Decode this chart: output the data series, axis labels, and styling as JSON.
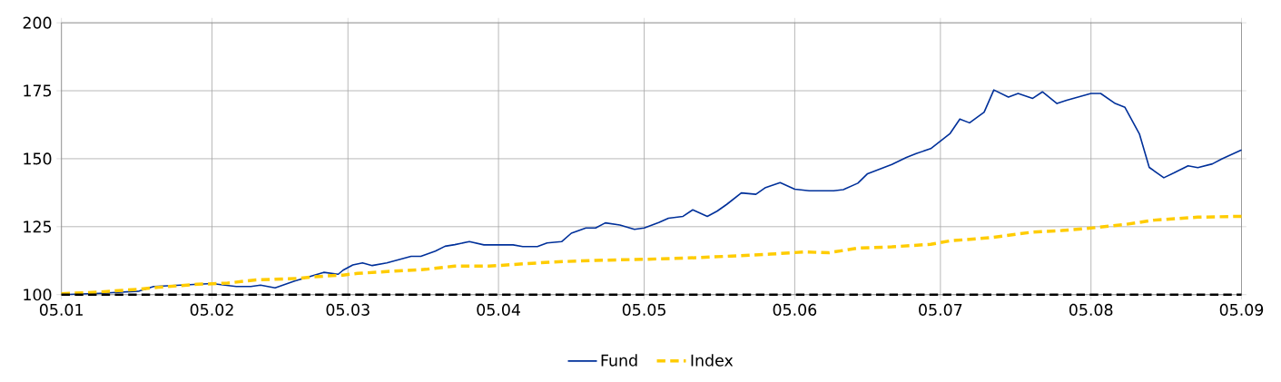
{
  "chart_data": {
    "type": "line",
    "xlim": [
      "2005-01",
      "2005-09"
    ],
    "ylim": [
      100,
      200
    ],
    "xticks": [
      {
        "value": "2005-01",
        "label": "05.01"
      },
      {
        "value": "2005-02",
        "label": "05.02"
      },
      {
        "value": "2005-03",
        "label": "05.03"
      },
      {
        "value": "2005-04",
        "label": "05.04"
      },
      {
        "value": "2005-05",
        "label": "05.05"
      },
      {
        "value": "2005-06",
        "label": "05.06"
      },
      {
        "value": "2005-07",
        "label": "05.07"
      },
      {
        "value": "2005-08",
        "label": "05.08"
      },
      {
        "value": "2005-09",
        "label": "05.09"
      }
    ],
    "yticks": [
      100,
      125,
      150,
      175,
      200
    ],
    "grid": true,
    "legend": "bottom",
    "ref_lines": [
      {
        "axis": "y",
        "value": 100,
        "color": "#000000",
        "line_style": "dashed"
      }
    ],
    "series": [
      {
        "name": "Fund",
        "color": "#00309a",
        "line_style": "solid",
        "x": [
          "2005-01-01",
          "2005-01-09",
          "2005-01-17",
          "2005-01-20",
          "2005-02-01",
          "2005-02-06",
          "2005-02-09",
          "2005-02-11",
          "2005-02-14",
          "2005-02-18",
          "2005-02-24",
          "2005-02-27",
          "2005-02-28",
          "2005-03-02",
          "2005-03-04",
          "2005-03-06",
          "2005-03-09",
          "2005-03-14",
          "2005-03-16",
          "2005-03-19",
          "2005-03-21",
          "2005-03-23",
          "2005-03-26",
          "2005-03-29",
          "2005-04-04",
          "2005-04-06",
          "2005-04-09",
          "2005-04-11",
          "2005-04-14",
          "2005-04-16",
          "2005-04-19",
          "2005-04-21",
          "2005-04-23",
          "2005-04-26",
          "2005-04-29",
          "2005-05-01",
          "2005-05-04",
          "2005-05-06",
          "2005-05-09",
          "2005-05-11",
          "2005-05-14",
          "2005-05-16",
          "2005-05-18",
          "2005-05-21",
          "2005-05-24",
          "2005-05-26",
          "2005-05-29",
          "2005-06-01",
          "2005-06-04",
          "2005-06-09",
          "2005-06-11",
          "2005-06-14",
          "2005-06-16",
          "2005-06-21",
          "2005-06-24",
          "2005-06-26",
          "2005-06-29",
          "2005-07-01",
          "2005-07-03",
          "2005-07-05",
          "2005-07-07",
          "2005-07-10",
          "2005-07-12",
          "2005-07-15",
          "2005-07-17",
          "2005-07-20",
          "2005-07-22",
          "2005-07-25",
          "2005-07-27",
          "2005-08-01",
          "2005-08-03",
          "2005-08-06",
          "2005-08-08",
          "2005-08-11",
          "2005-08-13",
          "2005-08-16",
          "2005-08-18",
          "2005-08-21",
          "2005-08-23",
          "2005-08-26",
          "2005-08-28",
          "2005-09-01"
        ],
        "values": [
          100,
          100.5,
          101.3,
          103,
          104.1,
          103,
          103,
          103.5,
          102.5,
          105,
          108.2,
          107.5,
          109,
          110.9,
          111.7,
          110.7,
          111.7,
          114.1,
          114.1,
          116,
          117.8,
          118.4,
          119.5,
          118.3,
          118.3,
          117.7,
          117.7,
          119,
          119.5,
          122.6,
          124.5,
          124.5,
          126.4,
          125.6,
          124,
          124.5,
          126.5,
          128.1,
          128.8,
          131.2,
          128.8,
          130.7,
          133.2,
          137.4,
          136.9,
          139.4,
          141.2,
          138.8,
          138.2,
          138.2,
          138.6,
          141,
          144.5,
          147.9,
          150.5,
          151.9,
          153.7,
          156.5,
          159.3,
          164.6,
          163.2,
          167.1,
          175.3,
          172.7,
          174,
          172.2,
          174.6,
          170.3,
          171.5,
          174,
          174,
          170.3,
          168.9,
          159,
          146.8,
          143,
          144.7,
          147.4,
          146.7,
          148.1,
          150,
          153.2
        ]
      },
      {
        "name": "Index",
        "color": "#ffcc00",
        "line_style": "dashed",
        "x": [
          "2005-01-01",
          "2005-01-09",
          "2005-01-17",
          "2005-01-21",
          "2005-01-29",
          "2005-02-04",
          "2005-02-10",
          "2005-02-19",
          "2005-02-22",
          "2005-02-28",
          "2005-03-03",
          "2005-03-09",
          "2005-03-17",
          "2005-03-23",
          "2005-03-30",
          "2005-04-12",
          "2005-04-21",
          "2005-05-01",
          "2005-05-12",
          "2005-05-19",
          "2005-05-27",
          "2005-06-03",
          "2005-06-08",
          "2005-06-14",
          "2005-06-21",
          "2005-06-29",
          "2005-07-03",
          "2005-07-11",
          "2005-07-20",
          "2005-07-26",
          "2005-07-31",
          "2005-08-08",
          "2005-08-14",
          "2005-08-23",
          "2005-09-01"
        ],
        "values": [
          100.3,
          101,
          102,
          102.7,
          103.8,
          104.2,
          105.4,
          106,
          106.6,
          107.2,
          107.8,
          108.5,
          109.3,
          110.5,
          110.5,
          112,
          112.6,
          113,
          113.6,
          114.2,
          114.9,
          115.7,
          115.4,
          117.1,
          117.6,
          118.5,
          119.8,
          120.9,
          123,
          123.6,
          124.3,
          125.8,
          127.4,
          128.5,
          128.8
        ]
      }
    ]
  }
}
